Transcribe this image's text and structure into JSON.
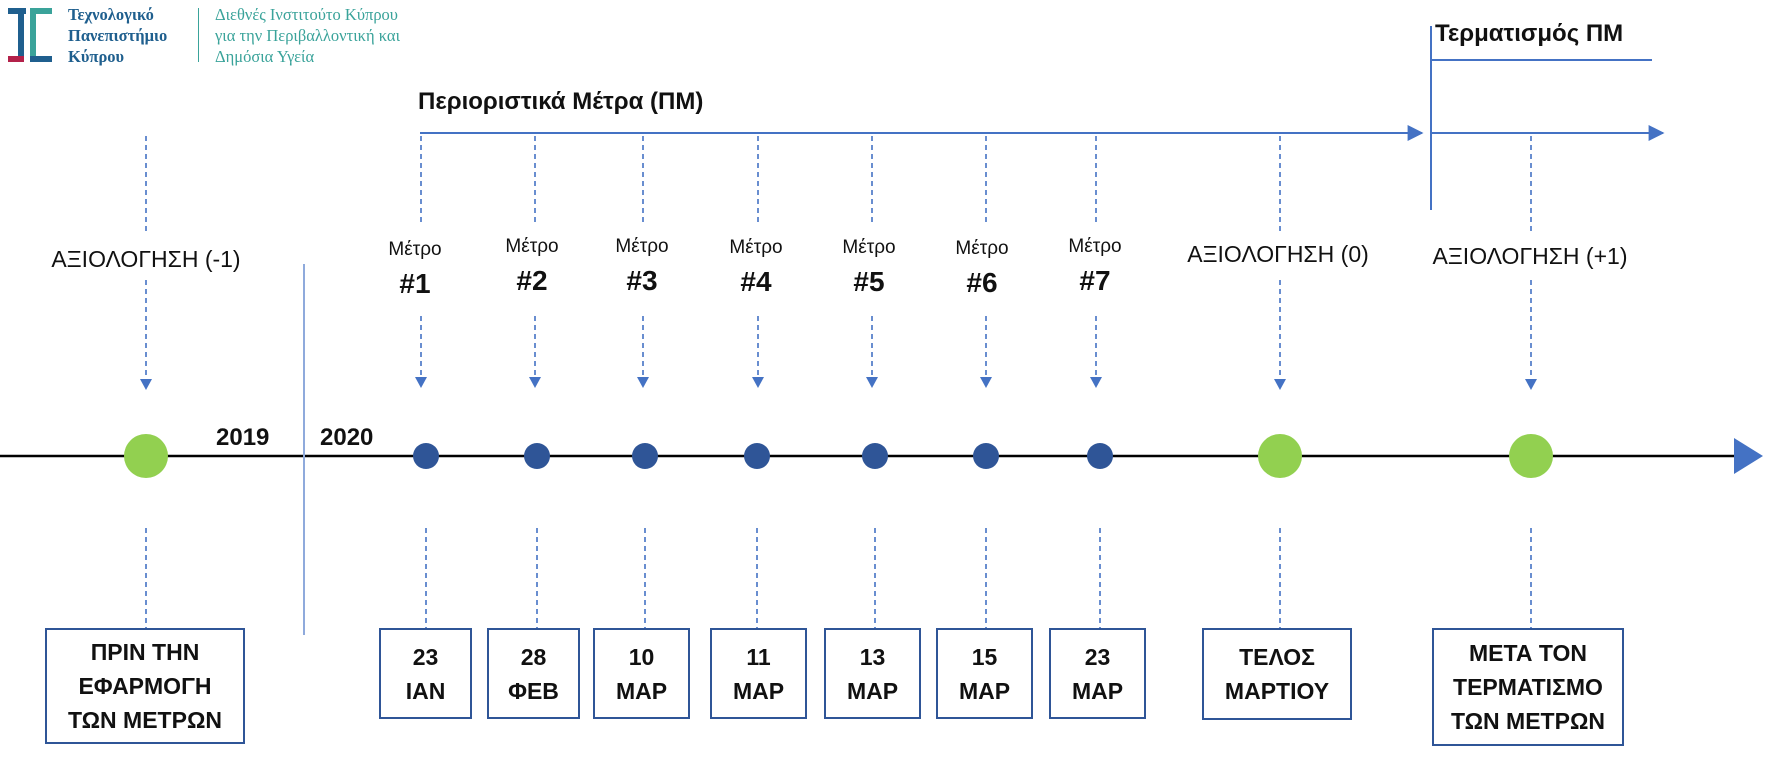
{
  "header": {
    "university_lines": [
      "Τεχνολογικό",
      "Πανεπιστήμιο",
      "Κύπρου"
    ],
    "institute_lines": [
      "Διεθνές Ινστιτούτο Κύπρου",
      "για την Περιβαλλοντική και",
      "Δημόσια Υγεία"
    ]
  },
  "titles": {
    "measures": "Περιοριστικά Μέτρα (ΠΜ)",
    "termination": "Τερματισμός ΠΜ"
  },
  "years": {
    "before": "2019",
    "after": "2020"
  },
  "evaluations": [
    {
      "label": "ΑΞΙΟΛΟΓΗΣΗ (-1)",
      "box": [
        "ΠΡΙΝ ΤΗΝ",
        "ΕΦΑΡΜΟΓΗ",
        "ΤΩΝ ΜΕΤΡΩΝ"
      ]
    },
    {
      "label": "ΑΞΙΟΛΟΓΗΣΗ (0)",
      "box": [
        "ΤΕΛΟΣ",
        "ΜΑΡΤΙΟΥ"
      ]
    },
    {
      "label": "ΑΞΙΟΛΟΓΗΣΗ (+1)",
      "box": [
        "ΜΕΤΑ ΤΟΝ",
        "ΤΕΡΜΑΤΙΣΜΟ",
        "ΤΩΝ ΜΕΤΡΩΝ"
      ]
    }
  ],
  "measures": [
    {
      "word": "Μέτρο",
      "number": "#1",
      "date": [
        "23",
        "ΙΑΝ"
      ]
    },
    {
      "word": "Μέτρο",
      "number": "#2",
      "date": [
        "28",
        "ΦΕΒ"
      ]
    },
    {
      "word": "Μέτρο",
      "number": "#3",
      "date": [
        "10",
        "ΜΑΡ"
      ]
    },
    {
      "word": "Μέτρο",
      "number": "#4",
      "date": [
        "11",
        "ΜΑΡ"
      ]
    },
    {
      "word": "Μέτρο",
      "number": "#5",
      "date": [
        "13",
        "ΜΑΡ"
      ]
    },
    {
      "word": "Μέτρο",
      "number": "#6",
      "date": [
        "15",
        "ΜΑΡ"
      ]
    },
    {
      "word": "Μέτρο",
      "number": "#7",
      "date": [
        "23",
        "ΜΑΡ"
      ]
    }
  ],
  "colors": {
    "line_blue": "#4472c4",
    "dot_blue": "#2f5597",
    "dot_green": "#92d050",
    "box_border": "#2f5597"
  }
}
